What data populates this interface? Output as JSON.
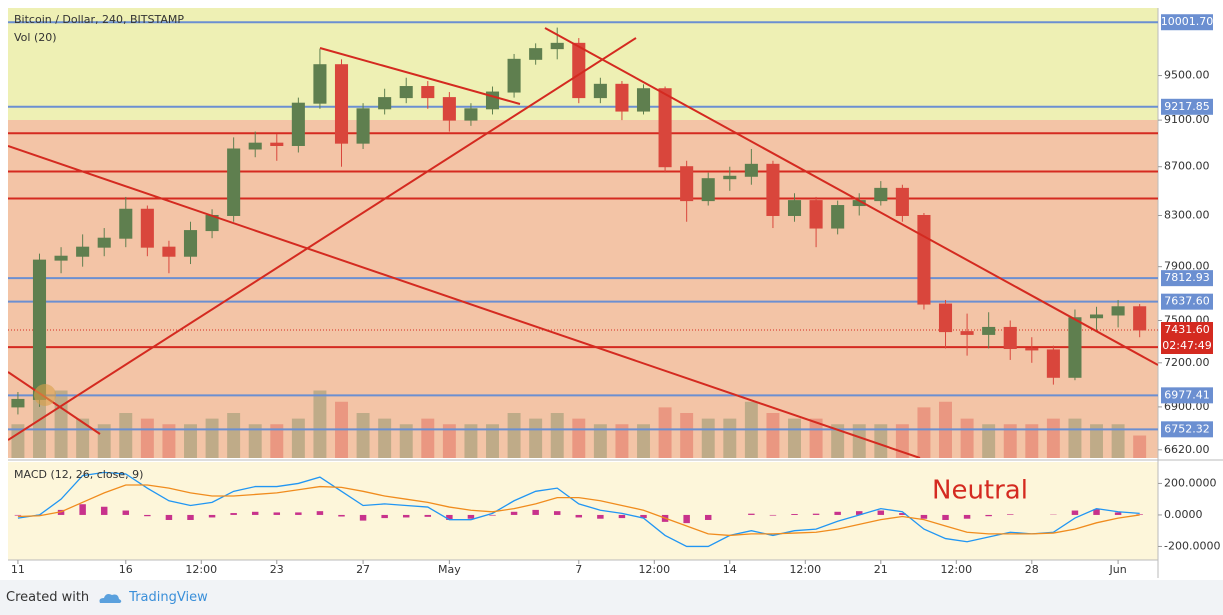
{
  "chart_data": [
    {
      "type": "candlestick",
      "title": "Bitcoin / Dollar, 240, BITSTAMP",
      "indicator": "Vol (20)",
      "log_scale": true,
      "ylim": [
        6568,
        10140
      ],
      "yticks": [
        {
          "value": 6620,
          "label": "6620.00"
        },
        {
          "value": 6900,
          "label": "6900.00"
        },
        {
          "value": 7200,
          "label": "7200.00"
        },
        {
          "value": 7500,
          "label": "7500.00"
        },
        {
          "value": 7900,
          "label": "7900.00"
        },
        {
          "value": 8300,
          "label": "8300.00"
        },
        {
          "value": 8700,
          "label": "8700.00"
        },
        {
          "value": 9100,
          "label": "9100.00"
        },
        {
          "value": 9500,
          "label": "9500.00"
        }
      ],
      "xlim": [
        0.54,
        53.85
      ],
      "xticks": [
        {
          "value": 1,
          "label": "11"
        },
        {
          "value": 6,
          "label": "16"
        },
        {
          "value": 9.5,
          "label": "12:00"
        },
        {
          "value": 13,
          "label": "23"
        },
        {
          "value": 17,
          "label": "27"
        },
        {
          "value": 21,
          "label": "May"
        },
        {
          "value": 27,
          "label": "7"
        },
        {
          "value": 30.5,
          "label": "12:00"
        },
        {
          "value": 34,
          "label": "14"
        },
        {
          "value": 37.5,
          "label": "12:00"
        },
        {
          "value": 41,
          "label": "21"
        },
        {
          "value": 44.5,
          "label": "12:00"
        },
        {
          "value": 48,
          "label": "28"
        },
        {
          "value": 52,
          "label": "Jun"
        }
      ],
      "x": [
        1,
        2,
        3,
        4,
        5,
        6,
        7,
        8,
        9,
        10,
        11,
        12,
        13,
        14,
        15,
        16,
        17,
        18,
        19,
        20,
        21,
        22,
        23,
        24,
        25,
        26,
        27,
        28,
        29,
        30,
        31,
        32,
        33,
        34,
        35,
        36,
        37,
        38,
        39,
        40,
        41,
        42,
        43,
        44,
        45,
        46,
        47,
        48,
        49,
        50,
        51,
        52,
        53
      ],
      "open": [
        6900,
        6950,
        7950,
        7980,
        8050,
        8120,
        8350,
        8050,
        7980,
        8180,
        8300,
        8850,
        8900,
        8880,
        9250,
        9600,
        8900,
        9200,
        9300,
        9400,
        9300,
        9100,
        9200,
        9350,
        9650,
        9750,
        9800,
        9300,
        9420,
        9180,
        9380,
        8700,
        8420,
        8600,
        8620,
        8720,
        8300,
        8420,
        8200,
        8380,
        8420,
        8520,
        8300,
        7620,
        7420,
        7400,
        7450,
        7300,
        7290,
        7100,
        7520,
        7540,
        7600
      ],
      "high": [
        7000,
        8000,
        8050,
        8150,
        8200,
        8450,
        8380,
        8100,
        8250,
        8350,
        8950,
        9000,
        8980,
        9300,
        9750,
        9650,
        9250,
        9380,
        9480,
        9450,
        9350,
        9250,
        9400,
        9700,
        9800,
        9950,
        9850,
        9480,
        9450,
        9420,
        9400,
        8750,
        8650,
        8700,
        8850,
        8750,
        8480,
        8450,
        8420,
        8480,
        8580,
        8550,
        8320,
        7650,
        7550,
        7560,
        7500,
        7380,
        7320,
        7580,
        7600,
        7650,
        7620
      ],
      "low": [
        6850,
        6900,
        7850,
        7900,
        7980,
        8050,
        7980,
        7850,
        7920,
        8120,
        8250,
        8780,
        8750,
        8820,
        9200,
        8700,
        8850,
        9150,
        9250,
        9200,
        9000,
        9050,
        9150,
        9300,
        9600,
        9650,
        9250,
        9250,
        9100,
        9150,
        8650,
        8250,
        8380,
        8500,
        8550,
        8200,
        8250,
        8050,
        8150,
        8300,
        8380,
        8250,
        7580,
        7300,
        7250,
        7300,
        7220,
        7200,
        7050,
        7080,
        7420,
        7450,
        7380
      ],
      "close": [
        6950,
        7950,
        7980,
        8050,
        8120,
        8350,
        8050,
        7980,
        8180,
        8300,
        8850,
        8900,
        8880,
        9250,
        9600,
        8900,
        9200,
        9300,
        9400,
        9300,
        9100,
        9200,
        9350,
        9650,
        9750,
        9800,
        9300,
        9420,
        9180,
        9380,
        8700,
        8420,
        8600,
        8620,
        8720,
        8300,
        8420,
        8200,
        8380,
        8420,
        8520,
        8300,
        7620,
        7420,
        7400,
        7450,
        7300,
        7290,
        7100,
        7520,
        7540,
        7600,
        7432
      ],
      "up_color": "#5f7f4f",
      "down_color": "#d9463c",
      "volume": {
        "lim": [
          0,
          400
        ],
        "values": [
          30,
          90,
          60,
          35,
          30,
          40,
          35,
          30,
          30,
          35,
          40,
          30,
          30,
          35,
          60,
          50,
          40,
          35,
          30,
          35,
          30,
          30,
          30,
          40,
          35,
          40,
          35,
          30,
          30,
          30,
          45,
          40,
          35,
          35,
          50,
          40,
          35,
          35,
          30,
          30,
          30,
          30,
          45,
          50,
          35,
          30,
          30,
          30,
          35,
          35,
          30,
          30,
          20
        ]
      },
      "levels": [
        {
          "value": 10001.7,
          "label": "10001.70"
        },
        {
          "value": 9217.85,
          "label": "9217.85"
        },
        {
          "value": 7812.93,
          "label": "7812.93"
        },
        {
          "value": 7637.6,
          "label": "7637.60"
        },
        {
          "value": 6977.41,
          "label": "6977.41"
        },
        {
          "value": 6752.32,
          "label": "6752.32"
        }
      ],
      "level_color": "#6b8fd1",
      "red_levels": [
        8985,
        8660,
        8437,
        7310
      ],
      "red_color": "#d42a20",
      "last_price": {
        "value": 7431.6,
        "label": "7431.60"
      },
      "countdown": "02:47:49"
    },
    {
      "type": "macd",
      "title": "MACD (12, 26, close, 9)",
      "annotation": "Neutral",
      "ylim": [
        -286,
        336
      ],
      "yticks": [
        {
          "value": -200,
          "label": "-200.0000"
        },
        {
          "value": 0,
          "label": "0.0000"
        },
        {
          "value": 200,
          "label": "200.0000"
        }
      ],
      "lines": [
        {
          "color": "#2196f3",
          "values": [
            -20,
            0,
            100,
            250,
            270,
            260,
            170,
            90,
            60,
            80,
            150,
            180,
            180,
            200,
            240,
            150,
            60,
            70,
            60,
            50,
            -30,
            -30,
            10,
            90,
            150,
            170,
            70,
            30,
            10,
            -20,
            -130,
            -200,
            -200,
            -130,
            -100,
            -130,
            -100,
            -90,
            -40,
            0,
            40,
            20,
            -90,
            -150,
            -170,
            -140,
            -110,
            -120,
            -110,
            -20,
            40,
            20,
            10
          ]
        },
        {
          "color": "#f08c1e",
          "values": [
            -10,
            -5,
            20,
            80,
            140,
            190,
            190,
            170,
            140,
            120,
            120,
            130,
            140,
            160,
            180,
            175,
            150,
            120,
            100,
            80,
            50,
            30,
            20,
            40,
            70,
            110,
            110,
            90,
            60,
            30,
            -20,
            -70,
            -120,
            -130,
            -120,
            -120,
            -115,
            -110,
            -90,
            -60,
            -30,
            -10,
            -30,
            -70,
            -110,
            -120,
            -120,
            -120,
            -115,
            -90,
            -50,
            -20,
            0
          ]
        }
      ],
      "histogram": {
        "color": "#c8328c",
        "values": [
          -4,
          2,
          32,
          68,
          52,
          28,
          -8,
          -32,
          -32,
          -16,
          12,
          20,
          16,
          16,
          24,
          -10,
          -36,
          -20,
          -16,
          -12,
          -32,
          -24,
          -4,
          20,
          32,
          24,
          -16,
          -24,
          -20,
          -20,
          -44,
          -52,
          -32,
          0,
          8,
          -4,
          6,
          8,
          20,
          24,
          28,
          12,
          -24,
          -32,
          -24,
          -8,
          4,
          0,
          2,
          28,
          36,
          16,
          4
        ]
      }
    }
  ],
  "footer": {
    "created_with": "Created with",
    "brand": "TradingView"
  }
}
